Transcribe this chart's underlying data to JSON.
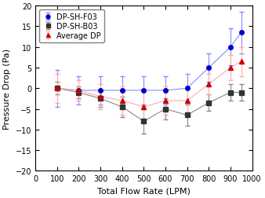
{
  "x": [
    100,
    200,
    300,
    400,
    500,
    600,
    700,
    800,
    900,
    950
  ],
  "f03_y": [
    0.0,
    -0.5,
    -0.5,
    -0.5,
    -0.5,
    -0.5,
    0.0,
    5.0,
    10.0,
    13.5
  ],
  "f03_yerr": [
    4.5,
    3.5,
    3.5,
    3.5,
    3.5,
    3.5,
    3.5,
    3.5,
    4.5,
    5.0
  ],
  "b03_y": [
    0.0,
    -1.0,
    -2.5,
    -4.5,
    -8.0,
    -5.0,
    -6.5,
    -3.5,
    -1.0,
    -1.0
  ],
  "b03_yerr": [
    1.5,
    1.5,
    2.0,
    2.5,
    3.0,
    2.5,
    2.5,
    2.0,
    2.0,
    2.0
  ],
  "avg_y": [
    0.0,
    -0.5,
    -2.0,
    -3.0,
    -4.5,
    -3.0,
    -3.0,
    1.0,
    5.0,
    6.5
  ],
  "avg_yerr": [
    3.5,
    2.5,
    3.0,
    3.5,
    4.0,
    3.5,
    3.5,
    2.5,
    3.0,
    3.5
  ],
  "f03_marker_color": "#0000cc",
  "f03_line_color": "#8888ff",
  "b03_marker_color": "#333333",
  "b03_line_color": "#888888",
  "avg_marker_color": "#cc0000",
  "avg_line_color": "#ffaaaa",
  "xlabel": "Total Flow Rate (LPM)",
  "ylabel": "Pressure Drop (Pa)",
  "xlim": [
    0,
    1000
  ],
  "ylim": [
    -20,
    20
  ],
  "yticks": [
    -20,
    -15,
    -10,
    -5,
    0,
    5,
    10,
    15,
    20
  ],
  "xticks": [
    0,
    100,
    200,
    300,
    400,
    500,
    600,
    700,
    800,
    900,
    1000
  ],
  "legend_labels": [
    "DP-SH-F03",
    "DP-SH-B03",
    "Average DP"
  ],
  "capsize": 2,
  "linewidth": 0.8,
  "markersize": 4,
  "xlabel_fontsize": 8,
  "ylabel_fontsize": 8,
  "tick_fontsize": 7,
  "legend_fontsize": 7
}
